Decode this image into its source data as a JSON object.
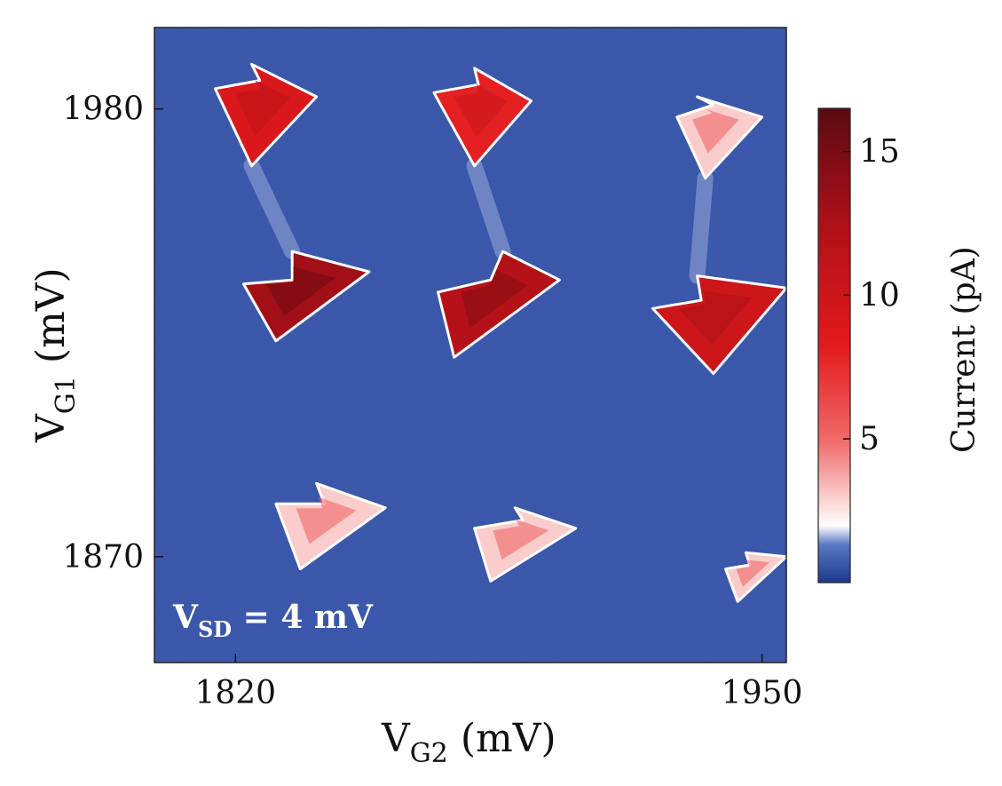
{
  "chart_data": {
    "type": "heatmap",
    "title": "",
    "xlabel": {
      "main": "V",
      "sub": "G2",
      "unit": " (mV)"
    },
    "ylabel": {
      "main": "V",
      "sub": "G1",
      "unit": " (mV)"
    },
    "x_ticks": [
      1820,
      1950
    ],
    "y_ticks": [
      1980,
      1870
    ],
    "xlim": [
      1800,
      1956
    ],
    "ylim": [
      1844,
      2000
    ],
    "colorbar": {
      "label": "Current (pA)",
      "ticks": [
        5,
        10,
        15
      ],
      "range": [
        0,
        16.5
      ],
      "colors": [
        "#1c3a8c",
        "#3a5cb0",
        "#ffffff",
        "#f06a6a",
        "#e31a1c",
        "#b01018",
        "#5a0a12"
      ]
    },
    "background_current_pA": 0,
    "annotation": {
      "main": "V",
      "sub": "SD",
      "rest": " = 4 mV"
    },
    "features": [
      {
        "name": "top-left-triangle",
        "current_pA": 9,
        "points": [
          [
            1815,
            1985
          ],
          [
            1826,
            1987
          ],
          [
            1824,
            1991
          ],
          [
            1840,
            1983
          ],
          [
            1824,
            1966
          ]
        ]
      },
      {
        "name": "top-middle-triangle",
        "current_pA": 8,
        "points": [
          [
            1869,
            1984
          ],
          [
            1880,
            1986
          ],
          [
            1879,
            1990
          ],
          [
            1893,
            1982
          ],
          [
            1879,
            1966
          ]
        ]
      },
      {
        "name": "top-right-triangle",
        "current_pA": 3,
        "points": [
          [
            1929,
            1978
          ],
          [
            1938,
            1981
          ],
          [
            1934,
            1983
          ],
          [
            1950,
            1978
          ],
          [
            1936,
            1963
          ]
        ]
      },
      {
        "name": "middle-left-triangle",
        "current_pA": 13,
        "points": [
          [
            1822,
            1937
          ],
          [
            1834,
            1938
          ],
          [
            1834,
            1945
          ],
          [
            1853,
            1940
          ],
          [
            1830,
            1923
          ]
        ]
      },
      {
        "name": "middle-middle-triangle",
        "current_pA": 12,
        "points": [
          [
            1870,
            1935
          ],
          [
            1883,
            1938
          ],
          [
            1886,
            1945
          ],
          [
            1900,
            1938
          ],
          [
            1874,
            1919
          ]
        ]
      },
      {
        "name": "middle-right-triangle",
        "current_pA": 10,
        "points": [
          [
            1923,
            1931
          ],
          [
            1935,
            1933
          ],
          [
            1934,
            1939
          ],
          [
            1956,
            1936
          ],
          [
            1938,
            1915
          ]
        ]
      },
      {
        "name": "bottom-left-triangle",
        "current_pA": 3,
        "points": [
          [
            1830,
            1883
          ],
          [
            1842,
            1883
          ],
          [
            1840,
            1888
          ],
          [
            1857,
            1882
          ],
          [
            1836,
            1867
          ]
        ]
      },
      {
        "name": "bottom-middle-triangle",
        "current_pA": 3,
        "points": [
          [
            1879,
            1877
          ],
          [
            1891,
            1879
          ],
          [
            1889,
            1882
          ],
          [
            1904,
            1877
          ],
          [
            1883,
            1864
          ]
        ]
      },
      {
        "name": "bottom-right-triangle",
        "current_pA": 3,
        "points": [
          [
            1941,
            1867
          ],
          [
            1947,
            1868
          ],
          [
            1946,
            1871
          ],
          [
            1956,
            1870
          ],
          [
            1944,
            1859
          ]
        ]
      }
    ]
  }
}
